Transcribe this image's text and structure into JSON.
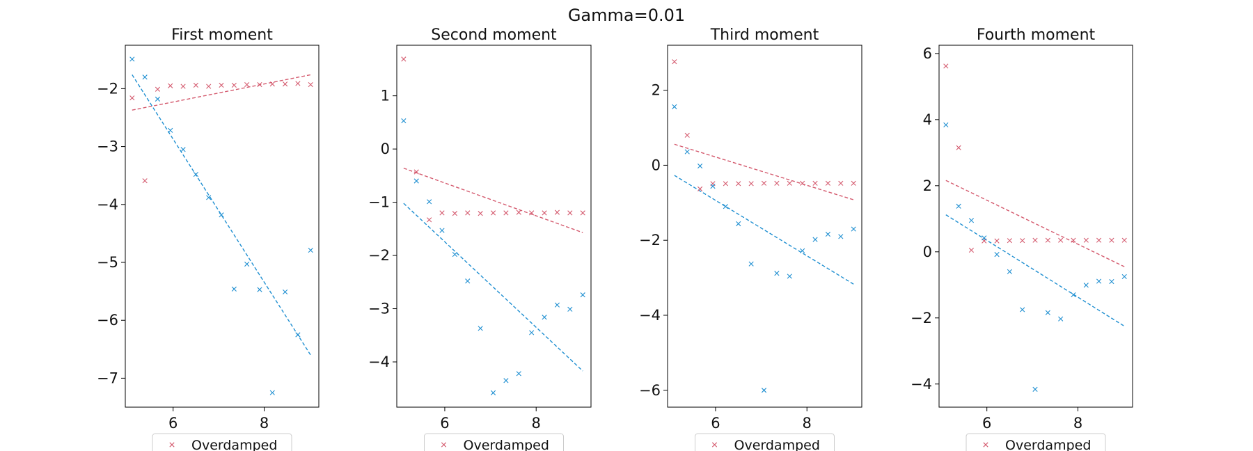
{
  "figure": {
    "title": "Gamma=0.01"
  },
  "colors": {
    "red": "#d45a6e",
    "blue": "#1f8fd1",
    "axis": "#000000",
    "legend_border": "#cccccc"
  },
  "chart_data": [
    {
      "type": "scatter",
      "title": "First moment",
      "xlim": [
        4.95,
        9.2
      ],
      "ylim": [
        -7.5,
        -1.25
      ],
      "xticks": [
        6,
        8
      ],
      "yticks": [
        -7,
        -6,
        -5,
        -4,
        -3,
        -2
      ],
      "legend": {
        "label": "Overdamped",
        "placement": "below"
      },
      "series": [
        {
          "name": "Overdamped",
          "color": "red",
          "marker": "x",
          "x": [
            5.1,
            5.38,
            5.66,
            5.94,
            6.22,
            6.5,
            6.78,
            7.06,
            7.34,
            7.62,
            7.9,
            8.18,
            8.46,
            8.74,
            9.02
          ],
          "y": [
            -2.16,
            -3.59,
            -2.01,
            -1.95,
            -1.96,
            -1.94,
            -1.96,
            -1.94,
            -1.94,
            -1.93,
            -1.93,
            -1.92,
            -1.92,
            -1.91,
            -1.93
          ]
        },
        {
          "color": "blue",
          "marker": "x",
          "x": [
            5.1,
            5.38,
            5.66,
            5.94,
            6.22,
            6.5,
            6.78,
            7.06,
            7.34,
            7.62,
            7.9,
            8.18,
            8.46,
            8.74,
            9.02
          ],
          "y": [
            -1.49,
            -1.8,
            -2.18,
            -2.72,
            -3.05,
            -3.48,
            -3.88,
            -4.18,
            -5.46,
            -5.03,
            -5.47,
            -7.25,
            -5.51,
            -6.25,
            -4.79
          ]
        }
      ],
      "fits": [
        {
          "color": "red",
          "x": [
            5.1,
            9.02
          ],
          "y": [
            -2.37,
            -1.76
          ]
        },
        {
          "color": "blue",
          "x": [
            5.1,
            9.02
          ],
          "y": [
            -1.76,
            -6.6
          ]
        }
      ]
    },
    {
      "type": "scatter",
      "title": "Second moment",
      "xlim": [
        4.95,
        9.2
      ],
      "ylim": [
        -4.85,
        1.95
      ],
      "xticks": [
        6,
        8
      ],
      "yticks": [
        -4,
        -3,
        -2,
        -1,
        0,
        1
      ],
      "legend": {
        "label": "Overdamped",
        "placement": "below"
      },
      "series": [
        {
          "name": "Overdamped",
          "color": "red",
          "marker": "x",
          "x": [
            5.1,
            5.38,
            5.66,
            5.94,
            6.22,
            6.5,
            6.78,
            7.06,
            7.34,
            7.62,
            7.9,
            8.18,
            8.46,
            8.74,
            9.02
          ],
          "y": [
            1.69,
            -0.43,
            -1.33,
            -1.2,
            -1.21,
            -1.2,
            -1.21,
            -1.2,
            -1.2,
            -1.19,
            -1.2,
            -1.2,
            -1.19,
            -1.2,
            -1.2
          ]
        },
        {
          "color": "blue",
          "marker": "x",
          "x": [
            5.1,
            5.38,
            5.66,
            5.94,
            6.22,
            6.5,
            6.78,
            7.06,
            7.34,
            7.62,
            7.9,
            8.18,
            8.46,
            8.74,
            9.02
          ],
          "y": [
            0.53,
            -0.6,
            -0.99,
            -1.53,
            -1.98,
            -2.48,
            -3.37,
            -4.58,
            -4.35,
            -4.22,
            -3.45,
            -3.16,
            -2.93,
            -3.01,
            -2.74
          ]
        }
      ],
      "fits": [
        {
          "color": "red",
          "x": [
            5.1,
            9.02
          ],
          "y": [
            -0.36,
            -1.57
          ]
        },
        {
          "color": "blue",
          "x": [
            5.1,
            9.02
          ],
          "y": [
            -1.02,
            -4.17
          ]
        }
      ]
    },
    {
      "type": "scatter",
      "title": "Third moment",
      "xlim": [
        4.95,
        9.2
      ],
      "ylim": [
        -6.45,
        3.2
      ],
      "xticks": [
        6,
        8
      ],
      "yticks": [
        -6,
        -4,
        -2,
        0,
        2
      ],
      "legend": {
        "label": "Overdamped",
        "placement": "below"
      },
      "series": [
        {
          "name": "Overdamped",
          "color": "red",
          "marker": "x",
          "x": [
            5.1,
            5.38,
            5.66,
            5.94,
            6.22,
            6.5,
            6.78,
            7.06,
            7.34,
            7.62,
            7.9,
            8.18,
            8.46,
            8.74,
            9.02
          ],
          "y": [
            2.76,
            0.8,
            -0.63,
            -0.49,
            -0.49,
            -0.49,
            -0.49,
            -0.48,
            -0.48,
            -0.48,
            -0.48,
            -0.48,
            -0.48,
            -0.48,
            -0.48
          ]
        },
        {
          "color": "blue",
          "marker": "x",
          "x": [
            5.1,
            5.38,
            5.66,
            5.94,
            6.22,
            6.5,
            6.78,
            7.06,
            7.34,
            7.62,
            7.9,
            8.18,
            8.46,
            8.74,
            9.02
          ],
          "y": [
            1.56,
            0.36,
            -0.02,
            -0.56,
            -1.1,
            -1.56,
            -2.63,
            -6.0,
            -2.88,
            -2.96,
            -2.28,
            -1.98,
            -1.84,
            -1.9,
            -1.7
          ]
        }
      ],
      "fits": [
        {
          "color": "red",
          "x": [
            5.1,
            9.02
          ],
          "y": [
            0.56,
            -0.92
          ]
        },
        {
          "color": "blue",
          "x": [
            5.1,
            9.02
          ],
          "y": [
            -0.27,
            -3.17
          ]
        }
      ]
    },
    {
      "type": "scatter",
      "title": "Fourth moment",
      "xlim": [
        4.95,
        9.2
      ],
      "ylim": [
        -4.7,
        6.25
      ],
      "xticks": [
        6,
        8
      ],
      "yticks": [
        -4,
        -2,
        0,
        2,
        4,
        6
      ],
      "legend": {
        "label": "Overdamped",
        "placement": "below"
      },
      "series": [
        {
          "name": "Overdamped",
          "color": "red",
          "marker": "x",
          "x": [
            5.1,
            5.38,
            5.66,
            5.94,
            6.22,
            6.5,
            6.78,
            7.06,
            7.34,
            7.62,
            7.9,
            8.18,
            8.46,
            8.74,
            9.02
          ],
          "y": [
            5.62,
            3.15,
            0.05,
            0.33,
            0.33,
            0.34,
            0.34,
            0.35,
            0.35,
            0.35,
            0.35,
            0.35,
            0.35,
            0.35,
            0.35
          ]
        },
        {
          "color": "blue",
          "marker": "x",
          "x": [
            5.1,
            5.38,
            5.66,
            5.94,
            6.22,
            6.5,
            6.78,
            7.06,
            7.34,
            7.62,
            7.9,
            8.18,
            8.46,
            8.74,
            9.02
          ],
          "y": [
            3.84,
            1.38,
            0.95,
            0.42,
            -0.08,
            -0.6,
            -1.75,
            -4.16,
            -1.84,
            -2.03,
            -1.3,
            -1.01,
            -0.89,
            -0.9,
            -0.75
          ]
        }
      ],
      "fits": [
        {
          "color": "red",
          "x": [
            5.1,
            9.02
          ],
          "y": [
            2.16,
            -0.45
          ]
        },
        {
          "color": "blue",
          "x": [
            5.1,
            9.02
          ],
          "y": [
            1.12,
            -2.25
          ]
        }
      ]
    }
  ]
}
